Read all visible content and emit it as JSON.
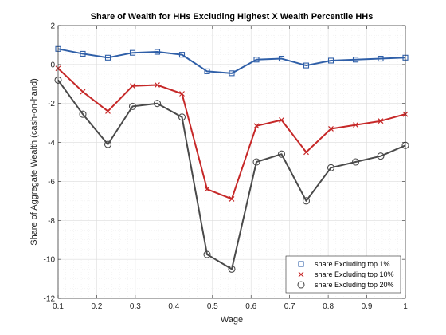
{
  "chart_data": {
    "type": "line",
    "title": "Share of Wealth for HHs Excluding Highest X Wealth Percentile HHs",
    "xlabel": "Wage",
    "ylabel": "Share of Aggregate Wealth (cash-on-hand)",
    "xlim": [
      0.1,
      1
    ],
    "ylim": [
      -12,
      2
    ],
    "xticks": [
      "0.1",
      "0.2",
      "0.3",
      "0.4",
      "0.5",
      "0.6",
      "0.7",
      "0.8",
      "0.9",
      "1"
    ],
    "yticks": [
      "2",
      "0",
      "-2",
      "-4",
      "-6",
      "-8",
      "-10",
      "-12"
    ],
    "grid": "minor, dotted",
    "legend_position": "bottom-right",
    "x": [
      0.1,
      0.164,
      0.229,
      0.293,
      0.357,
      0.421,
      0.486,
      0.55,
      0.614,
      0.679,
      0.743,
      0.807,
      0.871,
      0.936,
      1.0
    ],
    "series": [
      {
        "name": "share Excluding top 1%",
        "color": "#2f5fa8",
        "marker": "square",
        "values": [
          0.8,
          0.55,
          0.35,
          0.6,
          0.65,
          0.5,
          -0.35,
          -0.45,
          0.25,
          0.3,
          -0.05,
          0.2,
          0.25,
          0.3,
          0.35
        ]
      },
      {
        "name": "share Excluding top 10%",
        "color": "#c62828",
        "marker": "x",
        "values": [
          -0.2,
          -1.4,
          -2.4,
          -1.1,
          -1.05,
          -1.5,
          -6.4,
          -6.9,
          -3.15,
          -2.85,
          -4.5,
          -3.3,
          -3.1,
          -2.9,
          -2.55
        ]
      },
      {
        "name": "share Excluding top 20%",
        "color": "#4a4a4a",
        "marker": "circle",
        "values": [
          -0.8,
          -2.55,
          -4.1,
          -2.15,
          -2.0,
          -2.7,
          -9.75,
          -10.5,
          -5.0,
          -4.6,
          -7.0,
          -5.3,
          -5.0,
          -4.7,
          -4.15
        ]
      }
    ]
  }
}
